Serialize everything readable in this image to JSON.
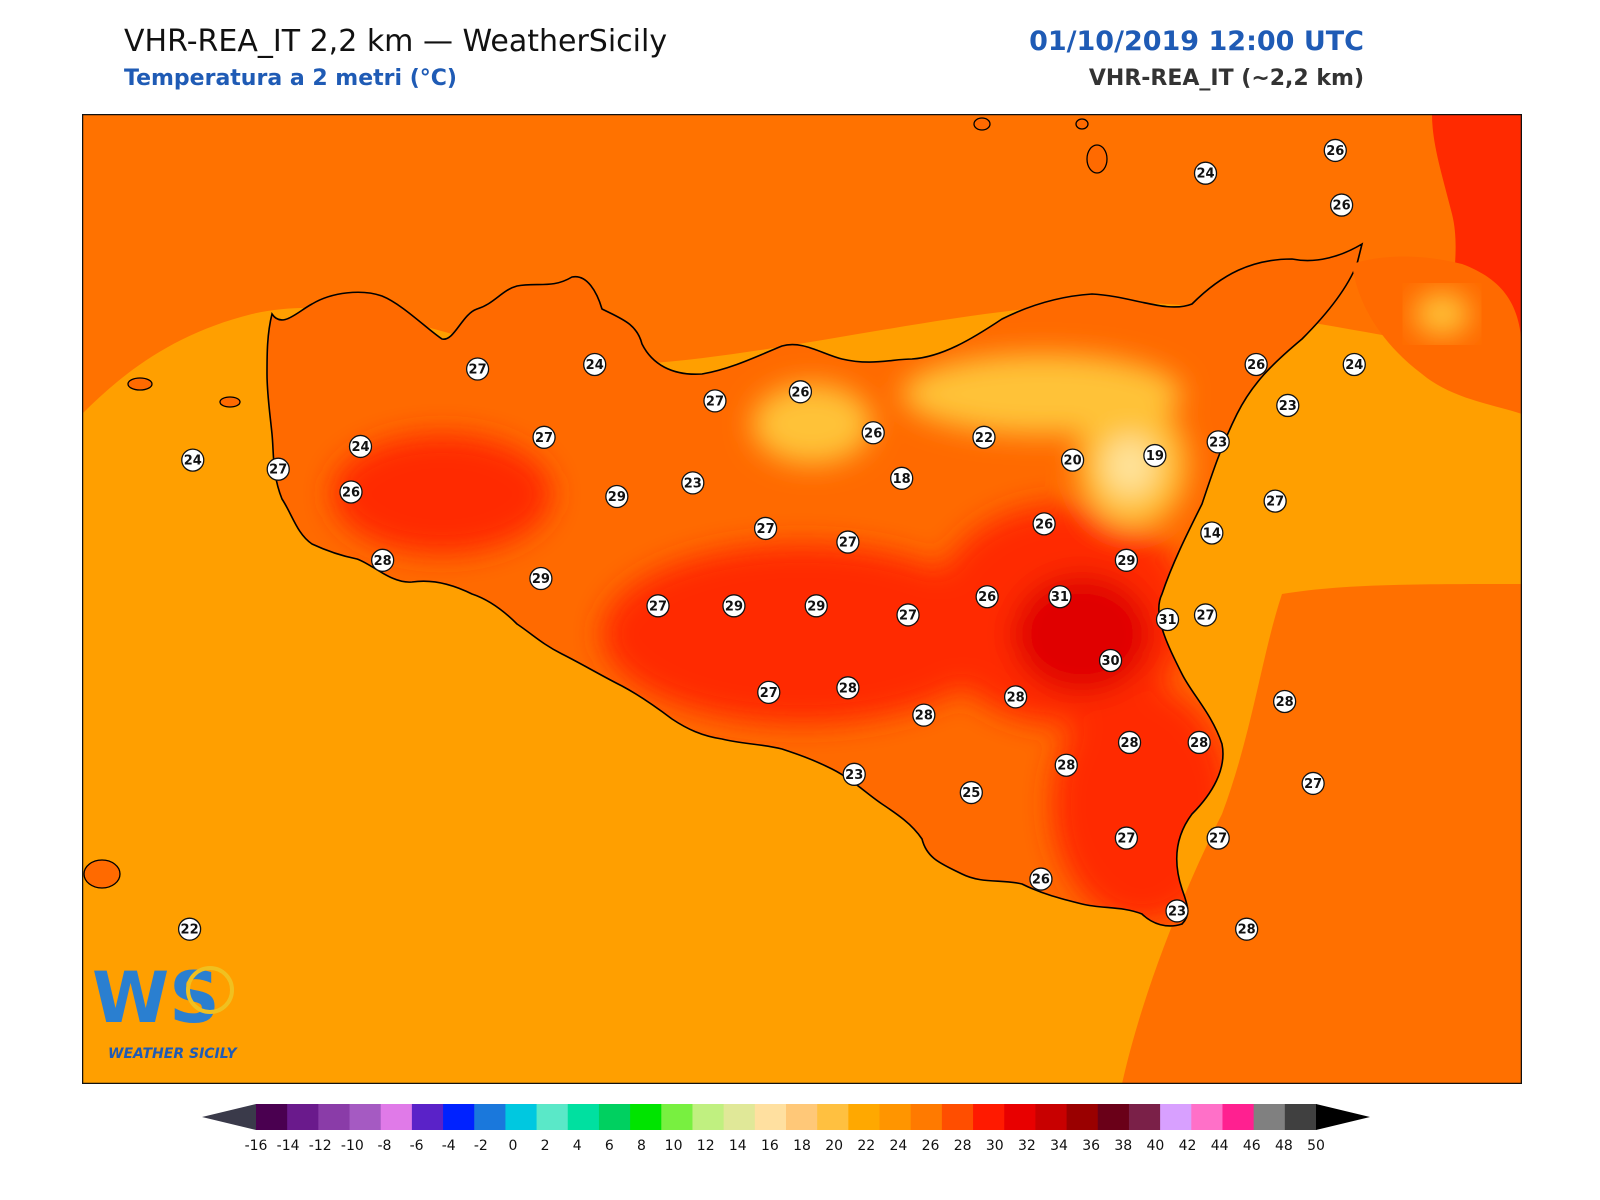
{
  "header": {
    "title": "VHR-REA_IT 2,2 km — WeatherSicily",
    "subtitle": "Temperatura a 2 metri (°C)",
    "datetime": "01/10/2019 12:00 UTC",
    "model": "VHR-REA_IT (~2,2 km)"
  },
  "logo": {
    "monogram": "WS",
    "text": "WEATHER SICILY"
  },
  "colors": {
    "sea": "#ff9f00",
    "land_base": "#ff6a00",
    "land_hot": "#ff2a00",
    "land_hotter": "#e00000",
    "land_cool": "#ffc238",
    "etna_cool": "#ffe39a",
    "coast": "#000000"
  },
  "colorbar": {
    "ticks": [
      "-16",
      "-14",
      "-12",
      "-10",
      "-8",
      "-6",
      "-4",
      "-2",
      "0",
      "2",
      "4",
      "6",
      "8",
      "10",
      "12",
      "14",
      "16",
      "18",
      "20",
      "22",
      "24",
      "26",
      "28",
      "30",
      "32",
      "34",
      "36",
      "38",
      "40",
      "42",
      "44",
      "46",
      "48",
      "50"
    ],
    "colors": [
      "#4a0050",
      "#6a1a8c",
      "#8a3ca8",
      "#a55ac2",
      "#e07ae8",
      "#5a22c8",
      "#0022ff",
      "#1a78dc",
      "#00c8e0",
      "#5ae8c8",
      "#00e0a0",
      "#00d060",
      "#00e400",
      "#78f040",
      "#c0f080",
      "#e0e898",
      "#ffe0a0",
      "#ffc878",
      "#ffc040",
      "#ffa800",
      "#ff9500",
      "#ff7a00",
      "#ff4e00",
      "#ff1a00",
      "#e80000",
      "#c80000",
      "#9a0000",
      "#6a0018",
      "#7a2048",
      "#d8a0ff",
      "#ff70c8",
      "#ff2090",
      "#808080",
      "#404040"
    ]
  },
  "stations": [
    {
      "v": "24",
      "lon": 12.55,
      "lat": 38.52
    },
    {
      "v": "26",
      "lon": 12.96,
      "lat": 38.57
    },
    {
      "v": "26",
      "lon": 12.98,
      "lat": 38.45
    },
    {
      "v": "27",
      "lon": 10.25,
      "lat": 38.09
    },
    {
      "v": "24",
      "lon": 10.62,
      "lat": 38.1
    },
    {
      "v": "27",
      "lon": 11.0,
      "lat": 38.02
    },
    {
      "v": "26",
      "lon": 11.27,
      "lat": 38.04
    },
    {
      "v": "26",
      "lon": 11.5,
      "lat": 37.95
    },
    {
      "v": "24",
      "lon": 9.35,
      "lat": 37.89
    },
    {
      "v": "24",
      "lon": 9.88,
      "lat": 37.92
    },
    {
      "v": "27",
      "lon": 10.46,
      "lat": 37.94
    },
    {
      "v": "27",
      "lon": 9.62,
      "lat": 37.87
    },
    {
      "v": "26",
      "lon": 9.85,
      "lat": 37.82
    },
    {
      "v": "29",
      "lon": 10.69,
      "lat": 37.81
    },
    {
      "v": "23",
      "lon": 10.93,
      "lat": 37.84
    },
    {
      "v": "18",
      "lon": 11.59,
      "lat": 37.85
    },
    {
      "v": "22",
      "lon": 11.85,
      "lat": 37.94
    },
    {
      "v": "20",
      "lon": 12.13,
      "lat": 37.89
    },
    {
      "v": "19",
      "lon": 12.39,
      "lat": 37.9
    },
    {
      "v": "23",
      "lon": 12.59,
      "lat": 37.93
    },
    {
      "v": "23",
      "lon": 12.81,
      "lat": 38.01
    },
    {
      "v": "26",
      "lon": 12.71,
      "lat": 38.1
    },
    {
      "v": "24",
      "lon": 13.02,
      "lat": 38.1
    },
    {
      "v": "27",
      "lon": 12.77,
      "lat": 37.8
    },
    {
      "v": "14",
      "lon": 12.57,
      "lat": 37.73
    },
    {
      "v": "26",
      "lon": 12.04,
      "lat": 37.75
    },
    {
      "v": "27",
      "lon": 11.16,
      "lat": 37.74
    },
    {
      "v": "27",
      "lon": 11.42,
      "lat": 37.71
    },
    {
      "v": "29",
      "lon": 12.3,
      "lat": 37.67
    },
    {
      "v": "28",
      "lon": 9.95,
      "lat": 37.67
    },
    {
      "v": "29",
      "lon": 10.45,
      "lat": 37.63
    },
    {
      "v": "27",
      "lon": 10.82,
      "lat": 37.57
    },
    {
      "v": "29",
      "lon": 11.06,
      "lat": 37.57
    },
    {
      "v": "29",
      "lon": 11.32,
      "lat": 37.57
    },
    {
      "v": "26",
      "lon": 11.86,
      "lat": 37.59
    },
    {
      "v": "31",
      "lon": 12.09,
      "lat": 37.59
    },
    {
      "v": "31",
      "lon": 12.43,
      "lat": 37.54
    },
    {
      "v": "27",
      "lon": 12.55,
      "lat": 37.55
    },
    {
      "v": "27",
      "lon": 11.61,
      "lat": 37.55
    },
    {
      "v": "30",
      "lon": 12.25,
      "lat": 37.45
    },
    {
      "v": "27",
      "lon": 11.17,
      "lat": 37.38
    },
    {
      "v": "28",
      "lon": 11.42,
      "lat": 37.39
    },
    {
      "v": "28",
      "lon": 11.95,
      "lat": 37.37
    },
    {
      "v": "28",
      "lon": 11.66,
      "lat": 37.33
    },
    {
      "v": "28",
      "lon": 12.8,
      "lat": 37.36
    },
    {
      "v": "28",
      "lon": 12.31,
      "lat": 37.27
    },
    {
      "v": "28",
      "lon": 12.53,
      "lat": 37.27
    },
    {
      "v": "28",
      "lon": 12.11,
      "lat": 37.22
    },
    {
      "v": "27",
      "lon": 12.89,
      "lat": 37.18
    },
    {
      "v": "23",
      "lon": 11.44,
      "lat": 37.2
    },
    {
      "v": "25",
      "lon": 11.81,
      "lat": 37.16
    },
    {
      "v": "27",
      "lon": 12.3,
      "lat": 37.06
    },
    {
      "v": "27",
      "lon": 12.59,
      "lat": 37.06
    },
    {
      "v": "26",
      "lon": 12.03,
      "lat": 36.97
    },
    {
      "v": "23",
      "lon": 12.46,
      "lat": 36.9
    },
    {
      "v": "28",
      "lon": 12.68,
      "lat": 36.86
    },
    {
      "v": "22",
      "lon": 9.34,
      "lat": 36.86
    }
  ]
}
